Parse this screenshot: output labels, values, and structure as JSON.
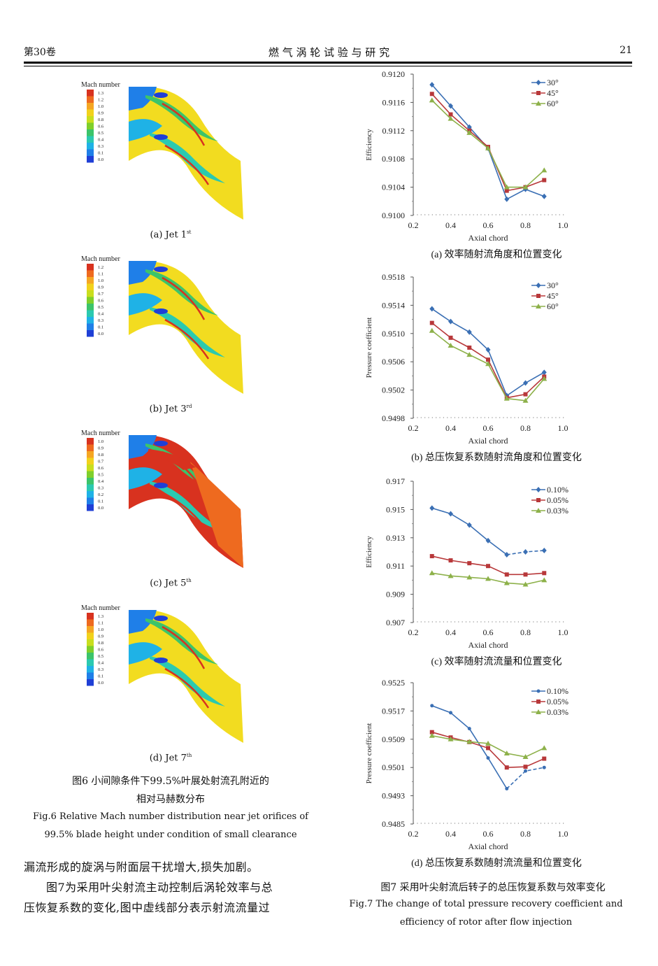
{
  "header": {
    "left": "第30卷",
    "center": "燃 气 涡 轮 试 验 与 研 究",
    "right": "21"
  },
  "fig6": {
    "panels": [
      {
        "legend_title": "Mach number",
        "ticks": [
          "1.3",
          "1.2",
          "1.0",
          "0.9",
          "0.8",
          "0.6",
          "0.5",
          "0.4",
          "0.3",
          "0.1",
          "0.0"
        ],
        "caption": "(a)  Jet 1",
        "sup": "st"
      },
      {
        "legend_title": "Mach number",
        "ticks": [
          "1.2",
          "1.1",
          "1.0",
          "0.9",
          "0.7",
          "0.6",
          "0.5",
          "0.4",
          "0.3",
          "0.1",
          "0.0"
        ],
        "caption": "(b)  Jet 3",
        "sup": "rd"
      },
      {
        "legend_title": "Mach number",
        "ticks": [
          "1.0",
          "0.9",
          "0.8",
          "0.7",
          "0.6",
          "0.5",
          "0.4",
          "0.3",
          "0.2",
          "0.1",
          "0.0"
        ],
        "caption": "(c)  Jet 5",
        "sup": "th"
      },
      {
        "legend_title": "Mach number",
        "ticks": [
          "1.3",
          "1.1",
          "1.0",
          "0.9",
          "0.8",
          "0.6",
          "0.5",
          "0.4",
          "0.3",
          "0.1",
          "0.0"
        ],
        "caption": "(d)  Jet 7",
        "sup": "th"
      }
    ],
    "caption_cn_1": "图6  小间隙条件下99.5%叶展处射流孔附近的",
    "caption_cn_2": "相对马赫数分布",
    "caption_en_1": "Fig.6  Relative Mach number distribution near jet orifices of",
    "caption_en_2": "99.5% blade height under condition of small clearance"
  },
  "body": {
    "line1": "漏流形成的旋涡与附面层干扰增大,损失加剧。",
    "line2": "图7为采用叶尖射流主动控制后涡轮效率与总",
    "line3": "压恢复系数的变化,图中虚线部分表示射流流量过"
  },
  "fig7": {
    "caption_cn": "图7  采用叶尖射流后转子的总压恢复系数与效率变化",
    "caption_en_1": "Fig.7  The change of total pressure recovery coefficient and",
    "caption_en_2": "efficiency of rotor after flow injection"
  },
  "chart_data": [
    {
      "type": "line",
      "subcaption": "(a)  效率随射流角度和位置变化",
      "xlabel": "Axial chord",
      "ylabel": "Efficiency",
      "xlim": [
        0.2,
        1.0
      ],
      "xticks": [
        "0.2",
        "0.4",
        "0.6",
        "0.8",
        "1.0"
      ],
      "ylim": [
        0.91,
        0.912
      ],
      "yticks": [
        "0.9120",
        "0.9116",
        "0.9112",
        "0.9108",
        "0.9104",
        "0.9100"
      ],
      "x": [
        0.3,
        0.4,
        0.5,
        0.6,
        0.7,
        0.8,
        0.9
      ],
      "series": [
        {
          "name": "30°",
          "color": "#3a6fb4",
          "marker": "diamond",
          "values": [
            0.91185,
            0.91155,
            0.91125,
            0.91095,
            0.91023,
            0.91037,
            0.91027
          ]
        },
        {
          "name": "45°",
          "color": "#b8383a",
          "marker": "square",
          "values": [
            0.91172,
            0.91143,
            0.9112,
            0.91097,
            0.91035,
            0.9104,
            0.9105
          ]
        },
        {
          "name": "60°",
          "color": "#8db14a",
          "marker": "triangle",
          "values": [
            0.91163,
            0.91137,
            0.91117,
            0.91095,
            0.9104,
            0.9104,
            0.91064
          ]
        }
      ]
    },
    {
      "type": "line",
      "subcaption": "(b)  总压恢复系数随射流角度和位置变化",
      "xlabel": "Axial chord",
      "ylabel": "Pressure coefficient",
      "xlim": [
        0.2,
        1.0
      ],
      "xticks": [
        "0.2",
        "0.4",
        "0.6",
        "0.8",
        "1.0"
      ],
      "ylim": [
        0.9498,
        0.9518
      ],
      "yticks": [
        "0.9518",
        "0.9514",
        "0.9510",
        "0.9506",
        "0.9502",
        "0.9498"
      ],
      "x": [
        0.3,
        0.4,
        0.5,
        0.6,
        0.7,
        0.8,
        0.9
      ],
      "series": [
        {
          "name": "30°",
          "color": "#3a6fb4",
          "marker": "diamond",
          "values": [
            0.95135,
            0.95117,
            0.95102,
            0.95077,
            0.95012,
            0.9503,
            0.95045
          ]
        },
        {
          "name": "45°",
          "color": "#b8383a",
          "marker": "square",
          "values": [
            0.95115,
            0.95094,
            0.9508,
            0.95063,
            0.95009,
            0.95014,
            0.95039
          ]
        },
        {
          "name": "60°",
          "color": "#8db14a",
          "marker": "triangle",
          "values": [
            0.95104,
            0.95083,
            0.9507,
            0.95057,
            0.95008,
            0.95005,
            0.95036
          ]
        }
      ]
    },
    {
      "type": "line",
      "subcaption": "(c)  效率随射流流量和位置变化",
      "xlabel": "Axial chord",
      "ylabel": "Efficiency",
      "xlim": [
        0.2,
        1.0
      ],
      "xticks": [
        "0.2",
        "0.4",
        "0.6",
        "0.8",
        "1.0"
      ],
      "ylim": [
        0.907,
        0.917
      ],
      "yticks": [
        "0.917",
        "0.915",
        "0.913",
        "0.911",
        "0.909",
        "0.907"
      ],
      "x": [
        0.3,
        0.4,
        0.5,
        0.6,
        0.7,
        0.8,
        0.9
      ],
      "series": [
        {
          "name": "0.10%",
          "color": "#3a6fb4",
          "marker": "diamond",
          "dashed_from_index": 5,
          "values": [
            0.9151,
            0.9147,
            0.9139,
            0.9128,
            0.9118,
            0.912,
            0.9121
          ]
        },
        {
          "name": "0.05%",
          "color": "#b8383a",
          "marker": "square",
          "values": [
            0.9117,
            0.9114,
            0.9112,
            0.911,
            0.9104,
            0.9104,
            0.9105
          ]
        },
        {
          "name": "0.03%",
          "color": "#8db14a",
          "marker": "triangle",
          "values": [
            0.9105,
            0.9103,
            0.9102,
            0.9101,
            0.9098,
            0.9097,
            0.91
          ]
        }
      ]
    },
    {
      "type": "line",
      "subcaption": "(d)  总压恢复系数随射流流量和位置变化",
      "xlabel": "Axial chord",
      "ylabel": "Pressure coefficient",
      "xlim": [
        0.2,
        1.0
      ],
      "xticks": [
        "0.2",
        "0.4",
        "0.6",
        "0.8",
        "1.0"
      ],
      "ylim": [
        0.9485,
        0.9525
      ],
      "yticks": [
        "0.9525",
        "0.9517",
        "0.9509",
        "0.9501",
        "0.9493",
        "0.9485"
      ],
      "x": [
        0.3,
        0.4,
        0.5,
        0.6,
        0.7,
        0.8,
        0.9
      ],
      "series": [
        {
          "name": "0.10%",
          "color": "#3a6fb4",
          "marker": "circle",
          "dashed_from_index": 5,
          "values": [
            0.95185,
            0.95165,
            0.9512,
            0.95037,
            0.9495,
            0.95,
            0.9501
          ]
        },
        {
          "name": "0.05%",
          "color": "#b8383a",
          "marker": "square",
          "values": [
            0.9511,
            0.95095,
            0.95082,
            0.95065,
            0.9501,
            0.95012,
            0.95035
          ]
        },
        {
          "name": "0.03%",
          "color": "#8db14a",
          "marker": "triangle",
          "values": [
            0.951,
            0.9509,
            0.95083,
            0.95078,
            0.9505,
            0.9504,
            0.95065
          ]
        }
      ]
    }
  ]
}
